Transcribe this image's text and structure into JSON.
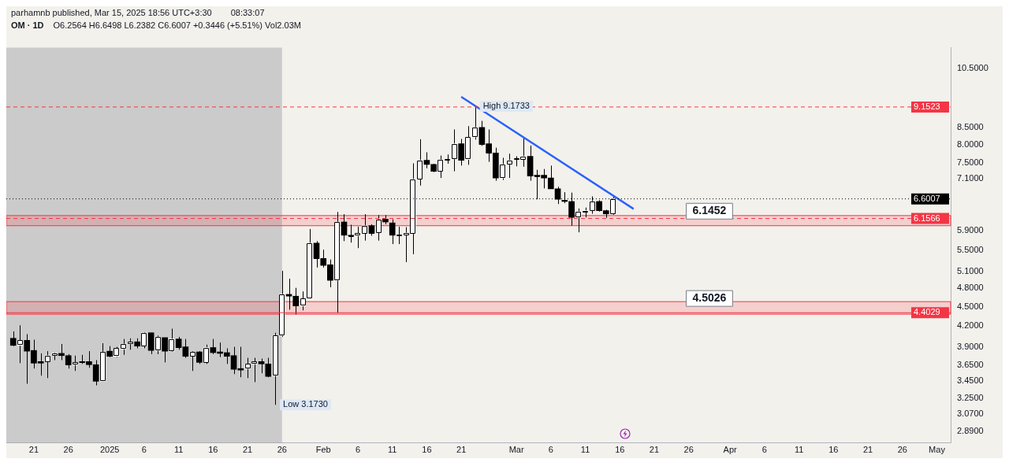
{
  "chart_data": {
    "type": "candlestick",
    "title": "OM · 1D",
    "subtitle": "O6.2564 H6.6498 L6.2382 C6.6007 +0.3446 (+5.51%) Vol2.03M",
    "annotations": [
      "parhamnb published, Mar 15, 2025 18:56 UTC+3:30",
      "08:33:07",
      {
        "text": "High 9.1733",
        "x": "2025-02-23",
        "y": 9.1733
      },
      {
        "text": "Low 3.1730",
        "x": "2025-01-25",
        "y": 3.173
      }
    ],
    "x": [
      "2024-12-18",
      "2024-12-19",
      "2024-12-20",
      "2024-12-21",
      "2024-12-22",
      "2024-12-23",
      "2024-12-24",
      "2024-12-25",
      "2024-12-26",
      "2024-12-27",
      "2024-12-28",
      "2024-12-29",
      "2024-12-30",
      "2024-12-31",
      "2025-01-01",
      "2025-01-02",
      "2025-01-03",
      "2025-01-04",
      "2025-01-05",
      "2025-01-06",
      "2025-01-07",
      "2025-01-08",
      "2025-01-09",
      "2025-01-10",
      "2025-01-11",
      "2025-01-12",
      "2025-01-13",
      "2025-01-14",
      "2025-01-15",
      "2025-01-16",
      "2025-01-17",
      "2025-01-18",
      "2025-01-19",
      "2025-01-20",
      "2025-01-21",
      "2025-01-22",
      "2025-01-23",
      "2025-01-24",
      "2025-01-25",
      "2025-01-26",
      "2025-01-27",
      "2025-01-28",
      "2025-01-29",
      "2025-01-30",
      "2025-01-31",
      "2025-02-01",
      "2025-02-02",
      "2025-02-03",
      "2025-02-04",
      "2025-02-05",
      "2025-02-06",
      "2025-02-07",
      "2025-02-08",
      "2025-02-09",
      "2025-02-10",
      "2025-02-11",
      "2025-02-12",
      "2025-02-13",
      "2025-02-14",
      "2025-02-15",
      "2025-02-16",
      "2025-02-17",
      "2025-02-18",
      "2025-02-19",
      "2025-02-20",
      "2025-02-21",
      "2025-02-22",
      "2025-02-23",
      "2025-02-24",
      "2025-02-25",
      "2025-02-26",
      "2025-02-27",
      "2025-02-28",
      "2025-03-01",
      "2025-03-02",
      "2025-03-03",
      "2025-03-04",
      "2025-03-05",
      "2025-03-06",
      "2025-03-07",
      "2025-03-08",
      "2025-03-09",
      "2025-03-10",
      "2025-03-11",
      "2025-03-12",
      "2025-03-13",
      "2025-03-14",
      "2025-03-15"
    ],
    "ohlc": [
      [
        4.02,
        4.12,
        3.91,
        3.92
      ],
      [
        3.92,
        4.21,
        3.68,
        3.99
      ],
      [
        3.99,
        4.08,
        3.42,
        3.84
      ],
      [
        3.85,
        4.0,
        3.61,
        3.68
      ],
      [
        3.7,
        3.81,
        3.52,
        3.68
      ],
      [
        3.7,
        3.84,
        3.49,
        3.78
      ],
      [
        3.78,
        3.82,
        3.72,
        3.81
      ],
      [
        3.81,
        3.94,
        3.72,
        3.78
      ],
      [
        3.78,
        3.8,
        3.61,
        3.66
      ],
      [
        3.66,
        3.78,
        3.58,
        3.69
      ],
      [
        3.7,
        3.79,
        3.67,
        3.69
      ],
      [
        3.7,
        3.84,
        3.62,
        3.66
      ],
      [
        3.66,
        3.72,
        3.4,
        3.45
      ],
      [
        3.45,
        3.95,
        3.45,
        3.83
      ],
      [
        3.84,
        3.91,
        3.76,
        3.77
      ],
      [
        3.77,
        3.9,
        3.76,
        3.88
      ],
      [
        3.87,
        4.01,
        3.79,
        3.94
      ],
      [
        3.94,
        4.02,
        3.86,
        3.97
      ],
      [
        3.97,
        4.02,
        3.88,
        3.91
      ],
      [
        3.91,
        4.11,
        3.88,
        4.1
      ],
      [
        4.1,
        4.1,
        3.8,
        3.85
      ],
      [
        3.85,
        4.06,
        3.8,
        4.04
      ],
      [
        4.03,
        4.03,
        3.69,
        3.84
      ],
      [
        3.84,
        4.16,
        3.83,
        4.01
      ],
      [
        4.01,
        4.04,
        3.86,
        3.89
      ],
      [
        3.9,
        4.01,
        3.75,
        3.77
      ],
      [
        3.77,
        3.84,
        3.58,
        3.83
      ],
      [
        3.83,
        3.84,
        3.67,
        3.69
      ],
      [
        3.69,
        3.93,
        3.67,
        3.89
      ],
      [
        3.89,
        4.01,
        3.8,
        3.82
      ],
      [
        3.83,
        3.96,
        3.76,
        3.81
      ],
      [
        3.82,
        3.88,
        3.67,
        3.77
      ],
      [
        3.78,
        3.9,
        3.54,
        3.6
      ],
      [
        3.61,
        3.9,
        3.5,
        3.59
      ],
      [
        3.61,
        3.75,
        3.49,
        3.67
      ],
      [
        3.67,
        3.75,
        3.44,
        3.7
      ],
      [
        3.7,
        3.74,
        3.55,
        3.67
      ],
      [
        3.67,
        3.75,
        3.5,
        3.51
      ],
      [
        3.52,
        4.1,
        3.173,
        4.06
      ],
      [
        4.06,
        5.11,
        4.04,
        4.7
      ],
      [
        4.7,
        4.97,
        4.45,
        4.67
      ],
      [
        4.67,
        4.81,
        4.38,
        4.51
      ],
      [
        4.51,
        4.75,
        4.44,
        4.63
      ],
      [
        4.63,
        5.93,
        4.63,
        5.64
      ],
      [
        5.64,
        5.68,
        5.17,
        5.34
      ],
      [
        5.34,
        5.51,
        5.17,
        5.21
      ],
      [
        5.22,
        5.32,
        4.82,
        4.94
      ],
      [
        4.94,
        6.3,
        4.4,
        6.08
      ],
      [
        6.08,
        6.25,
        5.68,
        5.8
      ],
      [
        5.8,
        6.02,
        5.65,
        5.79
      ],
      [
        5.79,
        5.98,
        5.54,
        5.84
      ],
      [
        5.84,
        6.25,
        5.69,
        6.0
      ],
      [
        6.0,
        6.03,
        5.79,
        5.84
      ],
      [
        5.85,
        6.23,
        5.69,
        6.13
      ],
      [
        6.14,
        6.23,
        6.03,
        6.08
      ],
      [
        6.06,
        6.14,
        5.62,
        5.8
      ],
      [
        5.8,
        5.98,
        5.62,
        5.81
      ],
      [
        5.8,
        5.97,
        5.27,
        5.85
      ],
      [
        5.84,
        7.49,
        5.42,
        7.08
      ],
      [
        7.08,
        8.16,
        6.92,
        7.57
      ],
      [
        7.57,
        7.79,
        7.36,
        7.46
      ],
      [
        7.46,
        7.48,
        7.26,
        7.28
      ],
      [
        7.28,
        7.7,
        7.11,
        7.59
      ],
      [
        7.59,
        7.73,
        7.48,
        7.6
      ],
      [
        7.61,
        8.45,
        7.28,
        8.03
      ],
      [
        8.03,
        8.17,
        7.43,
        7.57
      ],
      [
        7.59,
        8.55,
        7.45,
        8.22
      ],
      [
        8.22,
        9.1733,
        8.15,
        8.51
      ],
      [
        8.51,
        8.71,
        7.97,
        8.01
      ],
      [
        8.03,
        8.45,
        7.53,
        7.77
      ],
      [
        7.77,
        7.92,
        7.04,
        7.11
      ],
      [
        7.11,
        7.64,
        7.06,
        7.46
      ],
      [
        7.46,
        7.75,
        7.11,
        7.57
      ],
      [
        7.59,
        7.68,
        7.41,
        7.62
      ],
      [
        7.6,
        8.18,
        7.4,
        7.68
      ],
      [
        7.68,
        7.98,
        7.04,
        7.16
      ],
      [
        7.18,
        7.32,
        6.59,
        7.16
      ],
      [
        7.18,
        7.34,
        6.85,
        7.11
      ],
      [
        7.11,
        7.43,
        6.84,
        6.84
      ],
      [
        6.84,
        6.89,
        6.48,
        6.59
      ],
      [
        6.57,
        6.76,
        6.5,
        6.54
      ],
      [
        6.54,
        6.75,
        6.0,
        6.18
      ],
      [
        6.18,
        6.38,
        5.86,
        6.31
      ],
      [
        6.31,
        6.4,
        6.18,
        6.33
      ],
      [
        6.33,
        6.66,
        6.26,
        6.54
      ],
      [
        6.54,
        6.57,
        6.31,
        6.33
      ],
      [
        6.33,
        6.35,
        6.17,
        6.2564
      ],
      [
        6.2564,
        6.6498,
        6.2382,
        6.6007
      ]
    ],
    "colors": [
      "#000000",
      "#ffffff",
      "#000000",
      "#000000",
      "#000000",
      "#ffffff",
      "#ffffff",
      "#000000",
      "#000000",
      "#ffffff",
      "#000000",
      "#000000",
      "#000000",
      "#ffffff",
      "#000000",
      "#ffffff",
      "#ffffff",
      "#ffffff",
      "#000000",
      "#ffffff",
      "#000000",
      "#ffffff",
      "#000000",
      "#ffffff",
      "#000000",
      "#000000",
      "#ffffff",
      "#000000",
      "#ffffff",
      "#000000",
      "#000000",
      "#000000",
      "#000000",
      "#000000",
      "#ffffff",
      "#ffffff",
      "#000000",
      "#000000",
      "#ffffff",
      "#ffffff",
      "#000000",
      "#000000",
      "#ffffff",
      "#ffffff",
      "#000000",
      "#000000",
      "#000000",
      "#ffffff",
      "#000000",
      "#000000",
      "#ffffff",
      "#ffffff",
      "#000000",
      "#ffffff",
      "#000000",
      "#000000",
      "#ffffff",
      "#ffffff",
      "#ffffff",
      "#ffffff",
      "#000000",
      "#000000",
      "#ffffff",
      "#ffffff",
      "#ffffff",
      "#000000",
      "#ffffff",
      "#ffffff",
      "#000000",
      "#000000",
      "#000000",
      "#ffffff",
      "#ffffff",
      "#ffffff",
      "#ffffff",
      "#000000",
      "#000000",
      "#000000",
      "#000000",
      "#000000",
      "#000000",
      "#000000",
      "#ffffff",
      "#ffffff",
      "#ffffff",
      "#000000",
      "#000000",
      "#ffffff"
    ],
    "series": [
      {
        "type": "line",
        "color": "#2962ff",
        "x": [
          "2025-02-21",
          "2025-03-18"
        ],
        "values": [
          9.49,
          6.37
        ]
      }
    ],
    "ref_lines": [
      {
        "axis": "y",
        "value": 9.1523,
        "label": "9.1523",
        "color": "#f23645",
        "line_style": "dashed"
      },
      {
        "axis": "y",
        "value": 6.6007,
        "label": "6.6007",
        "color": "#000000",
        "line_style": "dotted"
      },
      {
        "axis": "y",
        "value": 6.1566,
        "label": "6.1566",
        "color": "#f23645",
        "line_style": "dashed"
      },
      {
        "axis": "y",
        "value": 4.4029,
        "label": "4.4029",
        "color": "#f23645",
        "line_style": "solid"
      }
    ],
    "bands": [
      {
        "axis": "x",
        "from": "2024-12-17",
        "to": "2025-01-26",
        "color": "#9e9ea4"
      },
      {
        "axis": "y",
        "from": 6.0,
        "to": 6.22,
        "label": "6.1452",
        "color": "#f23645"
      },
      {
        "axis": "y",
        "from": 4.38,
        "to": 4.58,
        "label": "4.5026",
        "color": "#f23645"
      }
    ],
    "log": true,
    "grid": false,
    "legend": false,
    "xlim": [
      "2024-12-17",
      "2025-05-03"
    ],
    "xticks": [
      {
        "value": "2024-12-21",
        "label": "21"
      },
      {
        "value": "2024-12-26",
        "label": "26"
      },
      {
        "value": "2025-01-01",
        "label": "2025"
      },
      {
        "value": "2025-01-06",
        "label": "6"
      },
      {
        "value": "2025-01-11",
        "label": "11"
      },
      {
        "value": "2025-01-16",
        "label": "16"
      },
      {
        "value": "2025-01-21",
        "label": "21"
      },
      {
        "value": "2025-01-26",
        "label": "26"
      },
      {
        "value": "2025-02-01",
        "label": "Feb"
      },
      {
        "value": "2025-02-06",
        "label": "6"
      },
      {
        "value": "2025-02-11",
        "label": "11"
      },
      {
        "value": "2025-02-16",
        "label": "16"
      },
      {
        "value": "2025-02-21",
        "label": "21"
      },
      {
        "value": "2025-03-01",
        "label": "Mar"
      },
      {
        "value": "2025-03-06",
        "label": "6"
      },
      {
        "value": "2025-03-11",
        "label": "11"
      },
      {
        "value": "2025-03-16",
        "label": "16"
      },
      {
        "value": "2025-03-21",
        "label": "21"
      },
      {
        "value": "2025-03-26",
        "label": "26"
      },
      {
        "value": "2025-04-01",
        "label": "Apr"
      },
      {
        "value": "2025-04-06",
        "label": "6"
      },
      {
        "value": "2025-04-11",
        "label": "11"
      },
      {
        "value": "2025-04-16",
        "label": "16"
      },
      {
        "value": "2025-04-21",
        "label": "21"
      },
      {
        "value": "2025-04-26",
        "label": "26"
      },
      {
        "value": "2025-05-01",
        "label": "May"
      }
    ],
    "ylim": [
      2.77,
      11.3
    ],
    "yticks": [
      {
        "value": 2.89,
        "label": "2.8900"
      },
      {
        "value": 3.07,
        "label": "3.0700"
      },
      {
        "value": 3.25,
        "label": "3.2500"
      },
      {
        "value": 3.45,
        "label": "3.4500"
      },
      {
        "value": 3.65,
        "label": "3.6500"
      },
      {
        "value": 3.9,
        "label": "3.9000"
      },
      {
        "value": 4.2,
        "label": "4.2000"
      },
      {
        "value": 4.5,
        "label": "4.5000"
      },
      {
        "value": 4.8,
        "label": "4.8000"
      },
      {
        "value": 5.1,
        "label": "5.1000"
      },
      {
        "value": 5.5,
        "label": "5.5000"
      },
      {
        "value": 5.9,
        "label": "5.9000"
      },
      {
        "value": 7.1,
        "label": "7.1000"
      },
      {
        "value": 7.5,
        "label": "7.5000"
      },
      {
        "value": 8.0,
        "label": "8.0000"
      },
      {
        "value": 8.5,
        "label": "8.5000"
      },
      {
        "value": 10.5,
        "label": "10.5000"
      }
    ]
  }
}
